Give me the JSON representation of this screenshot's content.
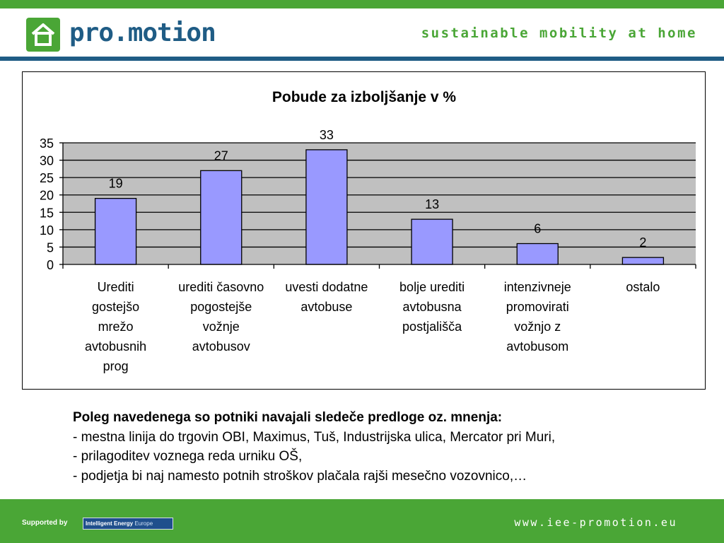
{
  "header": {
    "logo_text": "pro.motion",
    "tagline": "sustainable mobility at home"
  },
  "chart_data": {
    "type": "bar",
    "title": "Pobude za izboljšanje v %",
    "categories": [
      [
        "Urediti",
        "gostejšo",
        "mrežo",
        "avtobusnih",
        "prog"
      ],
      [
        "urediti časovno",
        "pogostejše",
        "vožnje",
        "avtobusov"
      ],
      [
        "uvesti dodatne",
        "avtobuse"
      ],
      [
        "bolje urediti",
        "avtobusna",
        "postjališča"
      ],
      [
        "intenzivneje",
        "promovirati",
        "vožnjo z",
        "avtobusom"
      ],
      [
        "ostalo"
      ]
    ],
    "values": [
      19,
      27,
      33,
      13,
      6,
      2
    ],
    "ylim": [
      0,
      35
    ],
    "yticks": [
      "0",
      "5",
      "10",
      "15",
      "20",
      "25",
      "30",
      "35"
    ],
    "grid": true,
    "bar_color": "#9999ff",
    "plot_background": "#c0c0c0"
  },
  "notes": {
    "heading": "Poleg navedenega so potniki navajali sledeče predloge oz. mnenja:",
    "lines": [
      "- mestna linija do trgovin OBI, Maximus, Tuš, Industrijska ulica, Mercator pri Muri,",
      "- prilagoditev voznega reda urniku OŠ,",
      "- podjetja bi naj namesto potnih stroškov plačala rajši mesečno vozovnico,…"
    ]
  },
  "footer": {
    "supported_by": "Supported by",
    "iee_logo_text": "Intelligent Energy",
    "iee_logo_europe": "Europe",
    "website": "www.iee-promotion.eu"
  }
}
